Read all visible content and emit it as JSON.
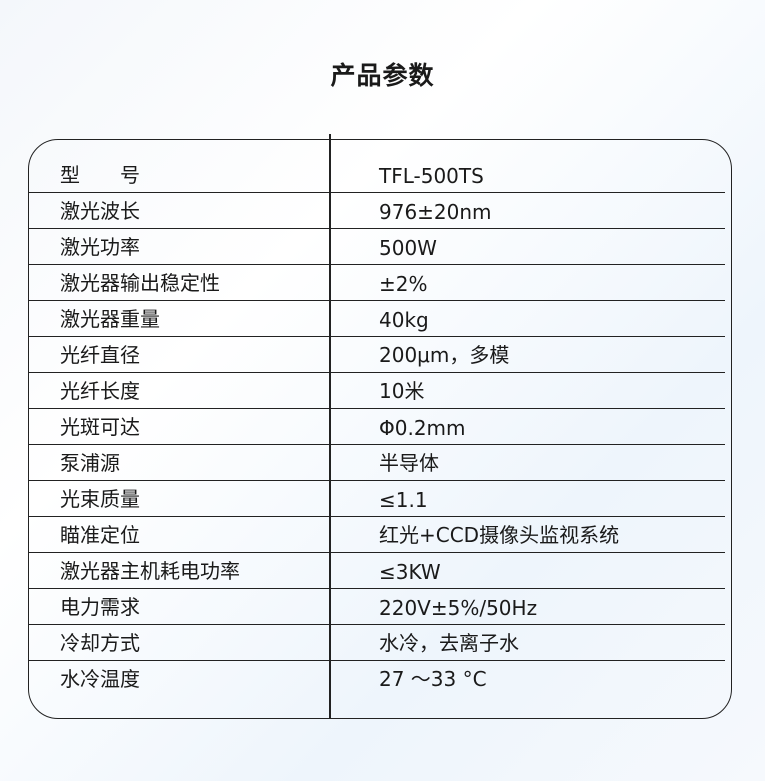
{
  "title": "产品参数",
  "rows": [
    {
      "label": "型　　号",
      "value": "TFL-500TS"
    },
    {
      "label": "激光波长",
      "value": "976±20nm"
    },
    {
      "label": "激光功率",
      "value": "500W"
    },
    {
      "label": "激光器输出稳定性",
      "value": "±2%"
    },
    {
      "label": "激光器重量",
      "value": "40kg"
    },
    {
      "label": "光纤直径",
      "value": "200μm，多模"
    },
    {
      "label": "光纤长度",
      "value": "10米"
    },
    {
      "label": "光斑可达",
      "value": "Φ0.2mm"
    },
    {
      "label": "泵浦源",
      "value": "半导体"
    },
    {
      "label": "光束质量",
      "value": "≤1.1"
    },
    {
      "label": "瞄准定位",
      "value": "红光+CCD摄像头监视系统"
    },
    {
      "label": "激光器主机耗电功率",
      "value": "≤3KW"
    },
    {
      "label": "电力需求",
      "value": "220V±5%/50Hz"
    },
    {
      "label": "冷却方式",
      "value": "水冷，去离子水"
    },
    {
      "label": "水冷温度",
      "value": "27 ～33 °C"
    }
  ]
}
